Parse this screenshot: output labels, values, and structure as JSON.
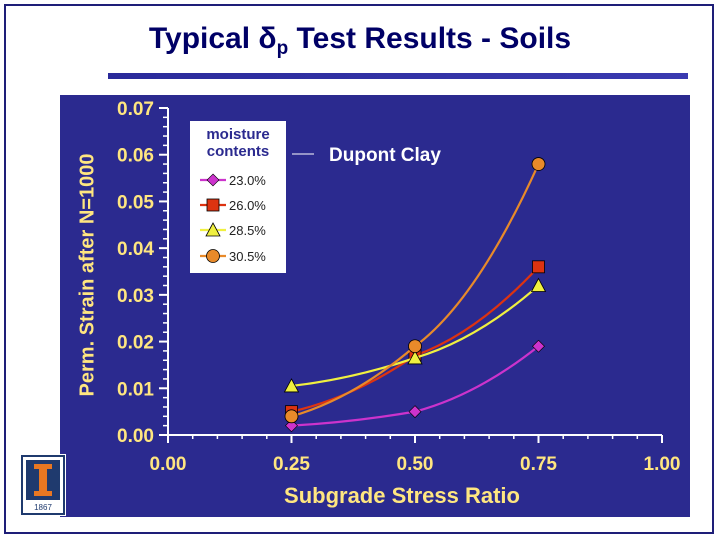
{
  "slide": {
    "title_prefix": "Typical ",
    "title_symbol": "δ",
    "title_subscript": "p",
    "title_suffix": " Test Results - Soils",
    "logo_text": "1867"
  },
  "chart_data": {
    "type": "line",
    "title": "Dupont Clay",
    "xlabel": "Subgrade Stress Ratio",
    "ylabel": "Perm. Strain after N=1000",
    "xlim": [
      0,
      1
    ],
    "ylim": [
      0,
      0.07
    ],
    "x_ticks": [
      "0.00",
      "0.25",
      "0.50",
      "0.75",
      "1.00"
    ],
    "y_ticks": [
      "0.00",
      "0.01",
      "0.02",
      "0.03",
      "0.04",
      "0.05",
      "0.06",
      "0.07"
    ],
    "legend_title": "moisture contents",
    "legend_position": "top-left",
    "colors": {
      "background": "#2b2a8f",
      "tick_text": "#ffe680",
      "axis_label": "#ffe680"
    },
    "x": [
      0.25,
      0.5,
      0.75
    ],
    "series": [
      {
        "name": "23.0%",
        "values": [
          0.002,
          0.005,
          0.019
        ],
        "color": "#cc33cc",
        "marker": "diamond"
      },
      {
        "name": "26.0%",
        "values": [
          0.005,
          0.017,
          0.036
        ],
        "color": "#dd3311",
        "marker": "square"
      },
      {
        "name": "28.5%",
        "values": [
          0.0105,
          0.0165,
          0.032
        ],
        "color": "#f0f040",
        "marker": "triangle"
      },
      {
        "name": "30.5%",
        "values": [
          0.004,
          0.019,
          0.058
        ],
        "color": "#e88a2a",
        "marker": "circle"
      }
    ]
  }
}
